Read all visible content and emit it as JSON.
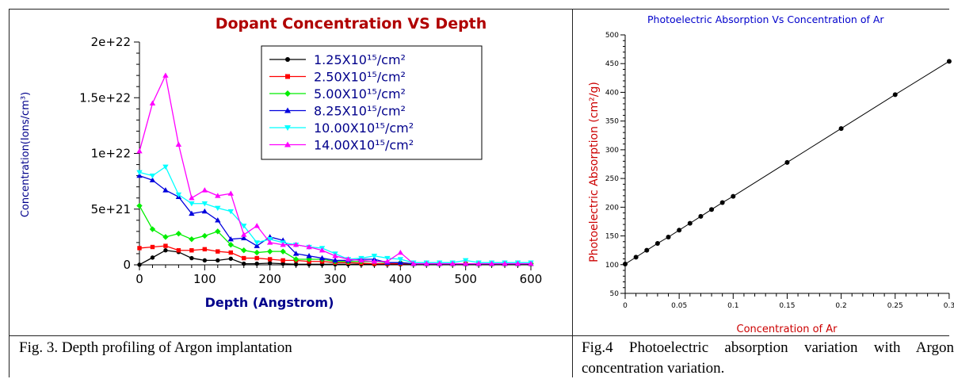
{
  "fig3": {
    "caption": "Fig. 3. Depth profiling of Argon implantation",
    "chart_data": {
      "type": "line",
      "title": "Dopant Concentration VS Depth",
      "xlabel": "Depth (Angstrom)",
      "ylabel": "Concentration(Ions/cm³)",
      "xlim": [
        0,
        600
      ],
      "ylim": [
        0,
        2e+22
      ],
      "xticks": [
        "0",
        "100",
        "200",
        "300",
        "400",
        "500",
        "600"
      ],
      "yticks": [
        "0",
        "5e+21",
        "1e+22",
        "1.5e+22",
        "2e+22"
      ],
      "legend_position": "top-right",
      "series": [
        {
          "name": "1.25X10¹⁵/cm²",
          "color": "#000000",
          "marker": "circle",
          "x": [
            0,
            20,
            40,
            60,
            80,
            100,
            120,
            140,
            160,
            180,
            200,
            220,
            240,
            260,
            280,
            300,
            320,
            340,
            360,
            380,
            400,
            420,
            440,
            460,
            480,
            500,
            520,
            540,
            560,
            580,
            600
          ],
          "y": [
            1e+19,
            6.5e+20,
            1.3e+21,
            1.15e+21,
            6e+20,
            4e+20,
            4e+20,
            5.5e+20,
            1e+20,
            1e+20,
            1.5e+20,
            1e+20,
            5e+19,
            5e+19,
            5e+19,
            5e+19,
            5e+19,
            5e+19,
            5e+19,
            5e+19,
            5e+19,
            5e+19,
            5e+19,
            5e+19,
            5e+19,
            5e+19,
            5e+19,
            5e+19,
            5e+19,
            5e+19,
            5e+19
          ]
        },
        {
          "name": "2.50X10¹⁵/cm²",
          "color": "#ff0000",
          "marker": "square",
          "x": [
            0,
            20,
            40,
            60,
            80,
            100,
            120,
            140,
            160,
            180,
            200,
            220,
            240,
            260,
            280,
            300,
            320,
            340,
            360,
            380,
            400,
            420,
            440,
            460,
            480,
            500,
            520,
            540,
            560,
            580,
            600
          ],
          "y": [
            1.5e+21,
            1.6e+21,
            1.7e+21,
            1.3e+21,
            1.3e+21,
            1.4e+21,
            1.2e+21,
            1.1e+21,
            6e+20,
            6e+20,
            5e+20,
            4e+20,
            4e+20,
            3e+20,
            3e+20,
            2e+20,
            2e+20,
            1.5e+20,
            1e+20,
            1e+20,
            1e+20,
            1e+20,
            1e+20,
            1e+20,
            1e+20,
            1e+20,
            1e+20,
            1e+20,
            1e+20,
            1e+20,
            1e+20
          ]
        },
        {
          "name": "5.00X10¹⁵/cm²",
          "color": "#00ee00",
          "marker": "diamond",
          "x": [
            0,
            20,
            40,
            60,
            80,
            100,
            120,
            140,
            160,
            180,
            200,
            220,
            240,
            260,
            280,
            300,
            320,
            340,
            360,
            380,
            400,
            420,
            440,
            460,
            480,
            500,
            520,
            540,
            560,
            580,
            600
          ],
          "y": [
            5.3e+21,
            3.2e+21,
            2.5e+21,
            2.8e+21,
            2.3e+21,
            2.6e+21,
            3e+21,
            1.8e+21,
            1.3e+21,
            1.1e+21,
            1.2e+21,
            1.2e+21,
            5e+20,
            5e+20,
            5e+20,
            3e+20,
            3e+20,
            3e+20,
            3e+20,
            2e+20,
            2e+20,
            1e+20,
            1e+20,
            1e+20,
            1e+20,
            1e+20,
            1e+20,
            1e+20,
            1e+20,
            1e+20,
            1e+20
          ]
        },
        {
          "name": "8.25X10¹⁵/cm²",
          "color": "#0000dd",
          "marker": "triangle-up",
          "x": [
            0,
            20,
            40,
            60,
            80,
            100,
            120,
            140,
            160,
            180,
            200,
            220,
            240,
            260,
            280,
            300,
            320,
            340,
            360,
            380,
            400,
            420,
            440,
            460,
            480,
            500,
            520,
            540,
            560,
            580,
            600
          ],
          "y": [
            8e+21,
            7.6e+21,
            6.7e+21,
            6.1e+21,
            4.6e+21,
            4.8e+21,
            4e+21,
            2.3e+21,
            2.4e+21,
            1.7e+21,
            2.5e+21,
            2.2e+21,
            1e+21,
            8e+20,
            6e+20,
            4e+20,
            4e+20,
            5e+20,
            5e+20,
            2e+20,
            2e+20,
            1e+20,
            1e+20,
            1e+20,
            1e+20,
            1e+20,
            1e+20,
            1e+20,
            1e+20,
            1e+20,
            1e+20
          ]
        },
        {
          "name": "10.00X10¹⁵/cm²",
          "color": "#00ffff",
          "marker": "triangle-down",
          "x": [
            0,
            20,
            40,
            60,
            80,
            100,
            120,
            140,
            160,
            180,
            200,
            220,
            240,
            260,
            280,
            300,
            320,
            340,
            360,
            380,
            400,
            420,
            440,
            460,
            480,
            500,
            520,
            540,
            560,
            580,
            600
          ],
          "y": [
            8.3e+21,
            8e+21,
            8.8e+21,
            6.3e+21,
            5.5e+21,
            5.5e+21,
            5.1e+21,
            4.8e+21,
            3.5e+21,
            2e+21,
            2.3e+21,
            2e+21,
            1.8e+21,
            1.6e+21,
            1.5e+21,
            1e+21,
            5e+20,
            6e+20,
            8e+20,
            6e+20,
            5e+20,
            2e+20,
            2e+20,
            2e+20,
            2e+20,
            4e+20,
            2e+20,
            2e+20,
            2e+20,
            2e+20,
            2e+20
          ]
        },
        {
          "name": "14.00X10¹⁵/cm²",
          "color": "#ff00ff",
          "marker": "triangle-up",
          "x": [
            0,
            20,
            40,
            60,
            80,
            100,
            120,
            140,
            160,
            180,
            200,
            220,
            240,
            260,
            280,
            300,
            320,
            340,
            360,
            380,
            400,
            420,
            440,
            460,
            480,
            500,
            520,
            540,
            560,
            580,
            600
          ],
          "y": [
            1.02e+22,
            1.45e+22,
            1.7e+22,
            1.08e+22,
            6e+21,
            6.7e+21,
            6.2e+21,
            6.4e+21,
            2.7e+21,
            3.5e+21,
            2e+21,
            1.8e+21,
            1.8e+21,
            1.6e+21,
            1.3e+21,
            8e+20,
            5e+20,
            4e+20,
            3e+20,
            3e+20,
            1.1e+21,
            1e+20,
            1e+20,
            1e+20,
            1e+20,
            1e+20,
            1e+20,
            1e+20,
            1e+20,
            1e+20,
            1e+20
          ]
        }
      ]
    }
  },
  "fig4": {
    "caption": "Fig.4 Photoelectric absorption variation with Argon concentration variation.",
    "chart_data": {
      "type": "line",
      "title": "Photoelectric Absorption Vs Concentration of Ar",
      "xlabel": "Concentration of Ar",
      "ylabel": "Photoelectric Absorption (cm²/g)",
      "xlim": [
        0,
        0.3
      ],
      "ylim": [
        50,
        500
      ],
      "xticks": [
        "0",
        "0.05",
        "0.1",
        "0.15",
        "0.2",
        "0.25",
        "0.3"
      ],
      "yticks": [
        "50",
        "100",
        "150",
        "200",
        "250",
        "300",
        "350",
        "400",
        "450",
        "500"
      ],
      "series": [
        {
          "name": "",
          "color": "#000000",
          "marker": "circle",
          "x": [
            0,
            0.01,
            0.02,
            0.03,
            0.04,
            0.05,
            0.06,
            0.07,
            0.08,
            0.09,
            0.1,
            0.15,
            0.2,
            0.25,
            0.3
          ],
          "y": [
            101,
            113,
            125,
            137,
            148,
            160,
            172,
            184,
            196,
            208,
            219,
            278,
            337,
            396,
            454
          ]
        }
      ]
    }
  }
}
